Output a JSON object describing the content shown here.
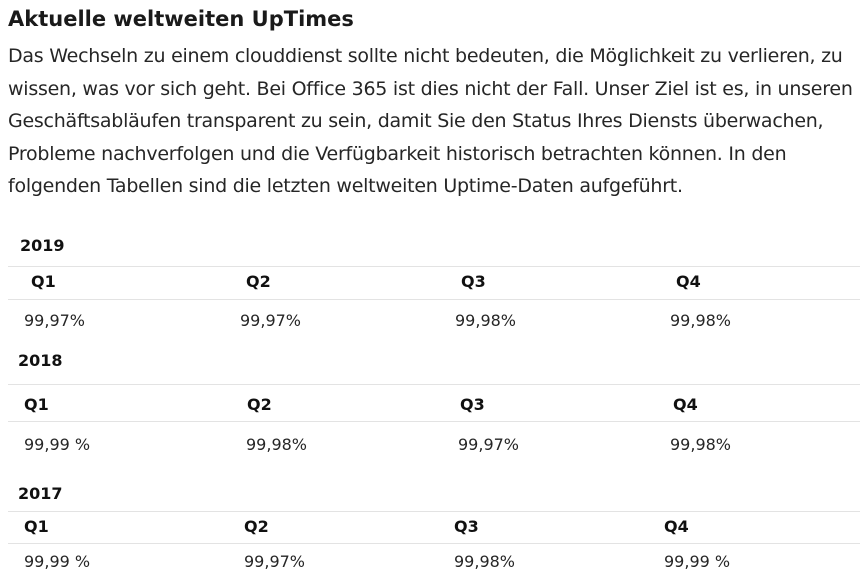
{
  "heading": "Aktuelle weltweiten UpTimes",
  "intro": "Das Wechseln zu einem clouddienst sollte nicht bedeuten, die Möglichkeit zu verlieren, zu wissen, was vor sich geht. Bei Office 365 ist dies nicht der Fall. Unser Ziel ist es, in unseren Geschäftsabläufen transparent zu sein, damit Sie den Status Ihres Diensts überwachen, Probleme nachverfolgen und die Verfügbarkeit historisch betrachten können. In den folgenden Tabellen sind die letzten weltweiten Uptime-Daten aufgeführt.",
  "tables": [
    {
      "year": "2019",
      "headers": [
        "Q1",
        "Q2",
        "Q3",
        "Q4"
      ],
      "values": [
        "99,97%",
        "99,97%",
        "99,98%",
        "99,98%"
      ]
    },
    {
      "year": "2018",
      "headers": [
        "Q1",
        "Q2",
        "Q3",
        "Q4"
      ],
      "values": [
        "99,99 %",
        "99,98%",
        "99,97%",
        "99,98%"
      ]
    },
    {
      "year": "2017",
      "headers": [
        "Q1",
        "Q2",
        "Q3",
        "Q4"
      ],
      "values": [
        "99,99 %",
        "99,97%",
        "99,98%",
        "99,99 %"
      ]
    }
  ]
}
